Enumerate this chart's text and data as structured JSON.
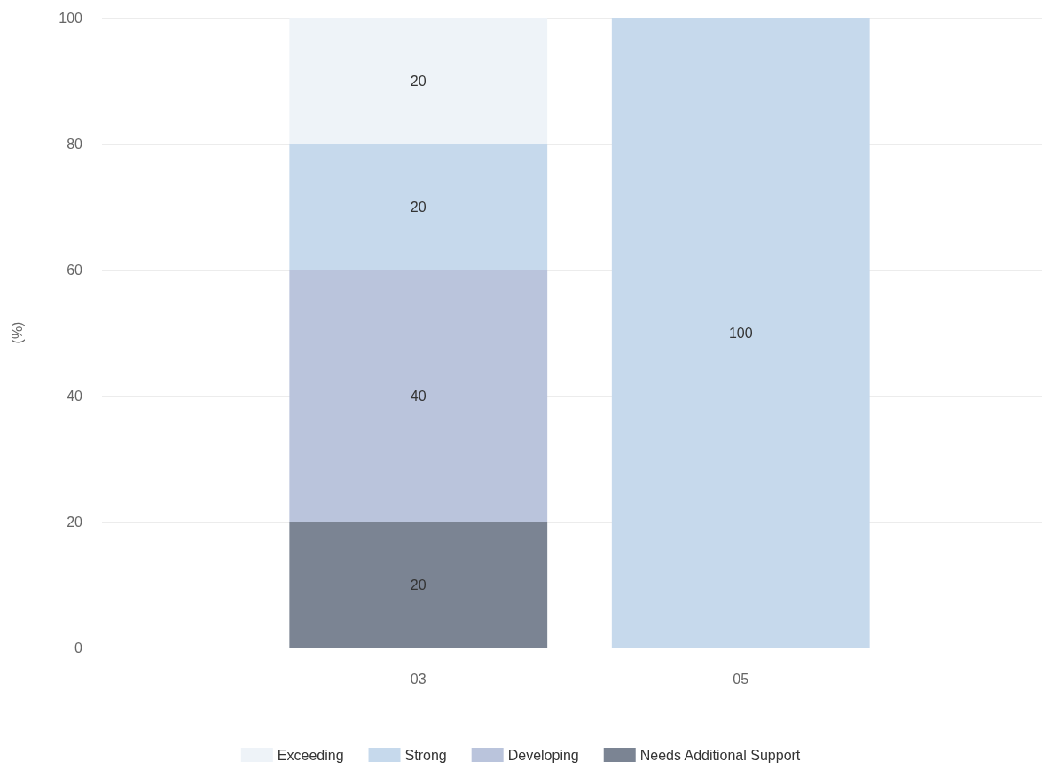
{
  "chart_data": {
    "type": "bar",
    "stacked": true,
    "categories": [
      "03",
      "05"
    ],
    "ylabel": "(%)",
    "series": [
      {
        "name": "Needs Additional Support",
        "color": "#7b8493",
        "values": [
          20,
          null
        ]
      },
      {
        "name": "Developing",
        "color": "#bac4dc",
        "values": [
          40,
          null
        ]
      },
      {
        "name": "Strong",
        "color": "#c6d9ec",
        "values": [
          20,
          100
        ]
      },
      {
        "name": "Exceeding",
        "color": "#eef3f8",
        "values": [
          20,
          null
        ]
      }
    ],
    "ylim": [
      0,
      100
    ],
    "yticks": [
      0,
      20,
      40,
      60,
      80,
      100
    ],
    "grid": "y",
    "data_labels": true,
    "legend": "bottom"
  }
}
